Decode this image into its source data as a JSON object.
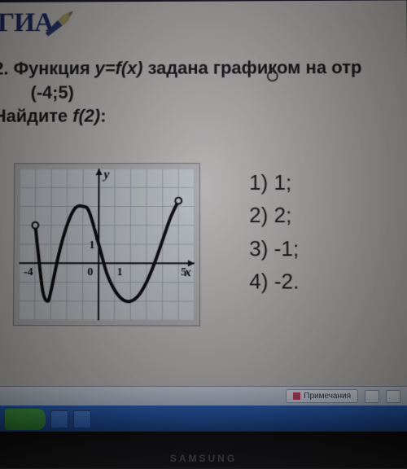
{
  "logo": {
    "text": "ГИА"
  },
  "question": {
    "number": "2.",
    "line1_a": "Функция ",
    "line1_fn": "y=f(x)",
    "line1_b": " задана графиком на отр",
    "interval": "(-4;5)",
    "find_a": "Найдите ",
    "find_fn": "f(2)",
    "find_b": ":"
  },
  "answers": [
    {
      "n": "1)",
      "v": "1;"
    },
    {
      "n": "2)",
      "v": "2;"
    },
    {
      "n": "3)",
      "v": "-1;"
    },
    {
      "n": "4)",
      "v": "-2."
    }
  ],
  "chart": {
    "type": "line",
    "background_color": "#eef2f4",
    "grid_color": "#b8c4cc",
    "axis_color": "#000000",
    "curve_color": "#000000",
    "curve_width": 4,
    "open_point_radius": 3,
    "open_point_stroke": "#000000",
    "open_point_fill": "#eef2f4",
    "x_range": [
      -5,
      6
    ],
    "y_range": [
      -3,
      5
    ],
    "x_ticks": [
      -4,
      0,
      1,
      5
    ],
    "y_ticks": [
      1
    ],
    "x_tick_labels": {
      "-4": "-4",
      "0": "0",
      "1": "1",
      "5": "5"
    },
    "y_tick_labels": {
      "1": "1"
    },
    "axis_labels": {
      "x": "x",
      "y": "y"
    },
    "axis_label_fontsize": 16,
    "tick_fontsize": 14,
    "curve_points": [
      [
        -4,
        2
      ],
      [
        -3.8,
        0.5
      ],
      [
        -3.5,
        -1.5
      ],
      [
        -3.2,
        -2
      ],
      [
        -3,
        -1.5
      ],
      [
        -2.5,
        0.5
      ],
      [
        -2,
        2
      ],
      [
        -1.5,
        2.9
      ],
      [
        -1,
        3
      ],
      [
        -0.6,
        2.7
      ],
      [
        0,
        1
      ],
      [
        0.5,
        -0.5
      ],
      [
        1,
        -1.4
      ],
      [
        1.5,
        -1.9
      ],
      [
        2,
        -2
      ],
      [
        2.5,
        -1.7
      ],
      [
        3,
        -1
      ],
      [
        3.5,
        0
      ],
      [
        4,
        1.2
      ],
      [
        4.5,
        2.4
      ],
      [
        5,
        3.3
      ]
    ],
    "open_endpoints": [
      [
        -4,
        2
      ],
      [
        5,
        3.3
      ]
    ]
  },
  "ui": {
    "notes_label": "Примечания"
  },
  "monitor": {
    "brand": "SAMSUNG"
  }
}
